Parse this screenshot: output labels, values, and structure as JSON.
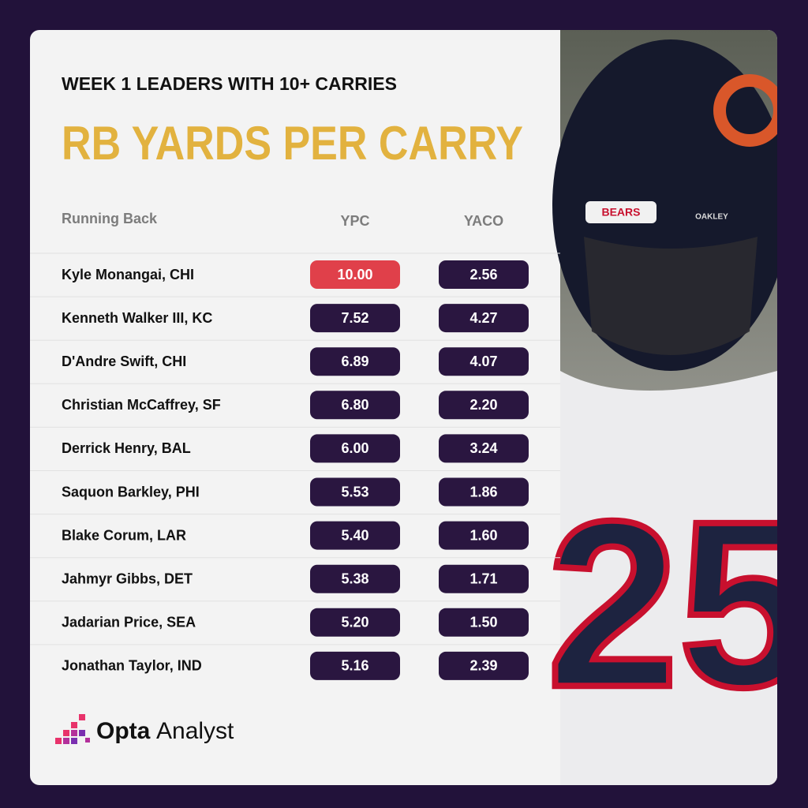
{
  "header": {
    "subtitle": "WEEK 1 LEADERS WITH 10+ CARRIES",
    "title": "RB YARDS PER CARRY"
  },
  "table": {
    "columns": [
      "Running Back",
      "YPC",
      "YACO"
    ],
    "rows": [
      [
        "Kyle Monangai, CHI",
        "10.00",
        "2.56"
      ],
      [
        "Kenneth Walker III, KC",
        "7.52",
        "4.27"
      ],
      [
        "D'Andre Swift, CHI",
        "6.89",
        "4.07"
      ],
      [
        "Christian McCaffrey, SF",
        "6.80",
        "2.20"
      ],
      [
        "Derrick Henry, BAL",
        "6.00",
        "3.24"
      ],
      [
        "Saquon Barkley, PHI",
        "5.53",
        "1.86"
      ],
      [
        "Blake Corum, LAR",
        "5.40",
        "1.60"
      ],
      [
        "Jahmyr Gibbs, DET",
        "5.38",
        "1.71"
      ],
      [
        "Jadarian Price, SEA",
        "5.20",
        "1.50"
      ],
      [
        "Jonathan Taylor, IND",
        "5.16",
        "2.39"
      ]
    ]
  },
  "footer": {
    "brand": "Opta",
    "product": "Analyst"
  },
  "photo": {
    "helmet_label": "BEARS",
    "visor_brand": "OAKLEY",
    "jersey_number": "25"
  }
}
